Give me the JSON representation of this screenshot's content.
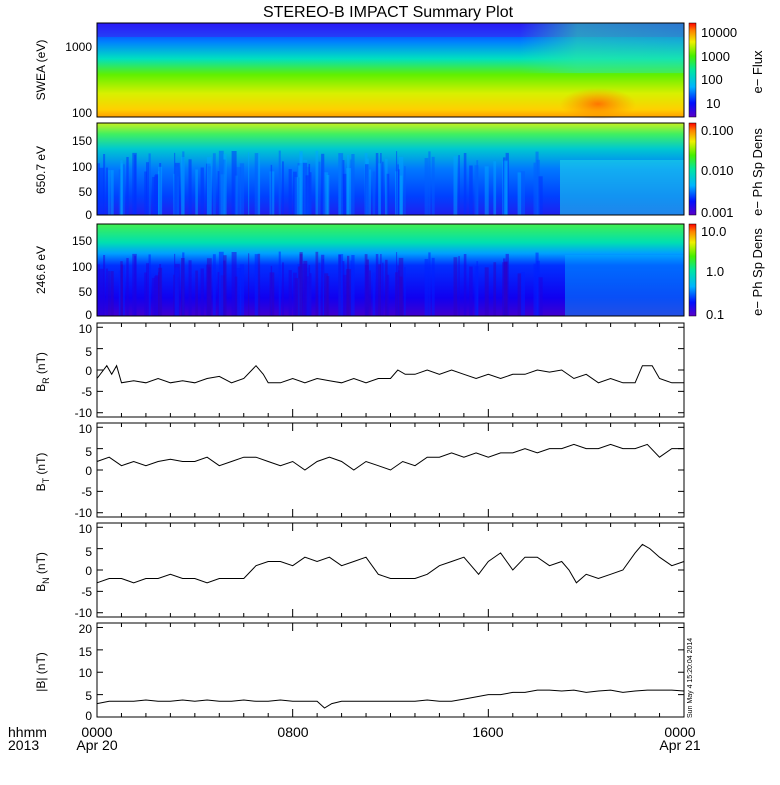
{
  "title": "STEREO-B IMPACT Summary Plot",
  "stamp": "Sun May  4 15:20:04 2014",
  "time_axis": {
    "row1": [
      "0000",
      "0800",
      "1600",
      "0000"
    ],
    "row2": [
      "Apr 20",
      "",
      "",
      "Apr 21"
    ],
    "left_label_1": "hhmm",
    "left_label_2": "2013",
    "hours": [
      0,
      8,
      16,
      24
    ]
  },
  "panels": [
    {
      "id": "swea",
      "ylabel": "SWEA (eV)",
      "ticks": [
        "1000",
        "100"
      ],
      "colorbar": {
        "label": "e− Flux",
        "ticks": [
          "10000",
          "1000",
          "100",
          "10"
        ]
      }
    },
    {
      "id": "pad650",
      "ylabel": "650.7 eV",
      "ticks": [
        "150",
        "100",
        "50",
        "0"
      ],
      "colorbar": {
        "label": "e− Ph Sp Dens",
        "ticks": [
          "0.100",
          "0.010",
          "0.001"
        ]
      }
    },
    {
      "id": "pad246",
      "ylabel": "246.6 eV",
      "ticks": [
        "150",
        "100",
        "50",
        "0"
      ],
      "colorbar": {
        "label": "e− Ph Sp Dens",
        "ticks": [
          "10.0",
          "1.0",
          "0.1"
        ]
      }
    },
    {
      "id": "br",
      "ylabel_main": "B",
      "ylabel_sub": "R",
      "ylabel_unit": " (nT)",
      "ticks": [
        "10",
        "5",
        "0",
        "-5",
        "-10"
      ]
    },
    {
      "id": "bt",
      "ylabel_main": "B",
      "ylabel_sub": "T",
      "ylabel_unit": " (nT)",
      "ticks": [
        "10",
        "5",
        "0",
        "-5",
        "-10"
      ]
    },
    {
      "id": "bn",
      "ylabel_main": "B",
      "ylabel_sub": "N",
      "ylabel_unit": " (nT)",
      "ticks": [
        "10",
        "5",
        "0",
        "-5",
        "-10"
      ]
    },
    {
      "id": "bmag",
      "ylabel": "|B| (nT)",
      "ticks": [
        "20",
        "15",
        "10",
        "5",
        "0"
      ]
    }
  ],
  "chart_data": {
    "type": "line",
    "x_unit": "hours since 0000 Apr 20",
    "xlim": [
      0,
      24
    ],
    "series": [
      {
        "name": "B_R",
        "ylim": [
          -11,
          11
        ],
        "x": [
          0,
          0.4,
          0.6,
          0.8,
          1,
          1.5,
          2,
          2.5,
          3,
          3.5,
          4,
          4.5,
          5,
          5.5,
          6,
          6.5,
          6.8,
          7,
          7.5,
          8,
          8.5,
          9,
          9.5,
          10,
          10.5,
          11,
          11.5,
          12,
          12.3,
          12.6,
          13,
          13.5,
          14,
          14.5,
          15,
          15.5,
          16,
          16.5,
          17,
          17.5,
          18,
          18.5,
          19,
          19.5,
          20,
          20.5,
          21,
          21.5,
          22,
          22.3,
          22.7,
          23,
          23.5,
          24
        ],
        "y": [
          -2,
          1,
          -1,
          1,
          -3,
          -2.5,
          -3,
          -2,
          -3,
          -2.5,
          -3,
          -2,
          -1.5,
          -3,
          -2,
          1,
          -1,
          -3,
          -3,
          -2,
          -3,
          -2,
          -2.5,
          -3,
          -2,
          -3,
          -2,
          -2,
          0,
          -1,
          -1,
          0,
          -1,
          0,
          -1,
          -2,
          -1,
          -2,
          -1,
          -1,
          0,
          -0.5,
          0,
          -2,
          -1,
          -3,
          -2,
          -3,
          -3,
          1,
          1,
          -2,
          -3,
          -3
        ]
      },
      {
        "name": "B_T",
        "ylim": [
          -11,
          11
        ],
        "x": [
          0,
          0.5,
          1,
          1.5,
          2,
          2.5,
          3,
          3.5,
          4,
          4.5,
          5,
          5.5,
          6,
          6.5,
          7,
          7.5,
          8,
          8.5,
          9,
          9.5,
          10,
          10.5,
          11,
          11.5,
          12,
          12.5,
          13,
          13.5,
          14,
          14.5,
          15,
          15.5,
          16,
          16.5,
          17,
          17.5,
          18,
          18.5,
          19,
          19.5,
          20,
          20.5,
          21,
          21.5,
          22,
          22.5,
          23,
          23.5,
          24
        ],
        "y": [
          2,
          3,
          1,
          2,
          1,
          2,
          2.5,
          2,
          2,
          3,
          1,
          2,
          3,
          3,
          2,
          1,
          2,
          0,
          2,
          3,
          2,
          0,
          2,
          1,
          0,
          2,
          1,
          3,
          3,
          4,
          3,
          4,
          3,
          4,
          4,
          5,
          4,
          5,
          5,
          6,
          5,
          5,
          6,
          5,
          5,
          6,
          3,
          5,
          5
        ]
      },
      {
        "name": "B_N",
        "ylim": [
          -11,
          11
        ],
        "x": [
          0,
          0.5,
          1,
          1.5,
          2,
          2.5,
          3,
          3.5,
          4,
          4.5,
          5,
          5.5,
          6,
          6.5,
          7,
          7.5,
          8,
          8.5,
          9,
          9.5,
          10,
          10.5,
          11,
          11.5,
          12,
          12.5,
          13,
          13.5,
          14,
          14.5,
          15,
          15.3,
          15.6,
          16,
          16.5,
          17,
          17.5,
          18,
          18.5,
          19,
          19.3,
          19.6,
          20,
          20.5,
          21,
          21.5,
          22,
          22.3,
          22.6,
          23,
          23.5,
          24
        ],
        "y": [
          -3,
          -2,
          -2,
          -3,
          -2,
          -2,
          -1,
          -2,
          -2,
          -3,
          -2,
          -2,
          -2,
          1,
          2,
          2,
          1,
          3,
          2,
          3,
          1,
          2,
          3,
          -1,
          -2,
          -2,
          -2,
          -1,
          1,
          2,
          3,
          1,
          -1,
          2,
          4,
          0,
          3,
          3,
          1,
          2,
          0,
          -3,
          -1,
          -2,
          -1,
          0,
          4,
          6,
          5,
          3,
          1,
          2
        ]
      },
      {
        "name": "|B|",
        "ylim": [
          0,
          21
        ],
        "x": [
          0,
          0.5,
          1,
          1.5,
          2,
          2.5,
          3,
          3.5,
          4,
          4.5,
          5,
          5.5,
          6,
          6.5,
          7,
          7.5,
          8,
          8.5,
          9,
          9.3,
          9.6,
          10,
          10.5,
          11,
          11.5,
          12,
          12.5,
          13,
          13.5,
          14,
          14.5,
          15,
          15.5,
          16,
          16.5,
          17,
          17.5,
          18,
          18.5,
          19,
          19.5,
          20,
          20.5,
          21,
          21.5,
          22,
          22.5,
          23,
          23.5,
          24
        ],
        "y": [
          3,
          3.5,
          3.5,
          3.5,
          3.8,
          3.5,
          3.5,
          3.8,
          3.5,
          3.8,
          3.5,
          3.5,
          3.8,
          3.5,
          3.5,
          3.8,
          3.5,
          3.5,
          3.5,
          2,
          3,
          3.5,
          3.5,
          3.5,
          3.5,
          3.5,
          3.5,
          3.5,
          3.8,
          3.5,
          3.5,
          4,
          4.5,
          5,
          5,
          5.5,
          5.5,
          6,
          6,
          5.8,
          6,
          5.5,
          5.8,
          6,
          5.5,
          5.8,
          6,
          6,
          6,
          5.8
        ]
      }
    ]
  },
  "colors": {
    "axes": "#000000",
    "trace": "#000000",
    "background": "#ffffff"
  }
}
